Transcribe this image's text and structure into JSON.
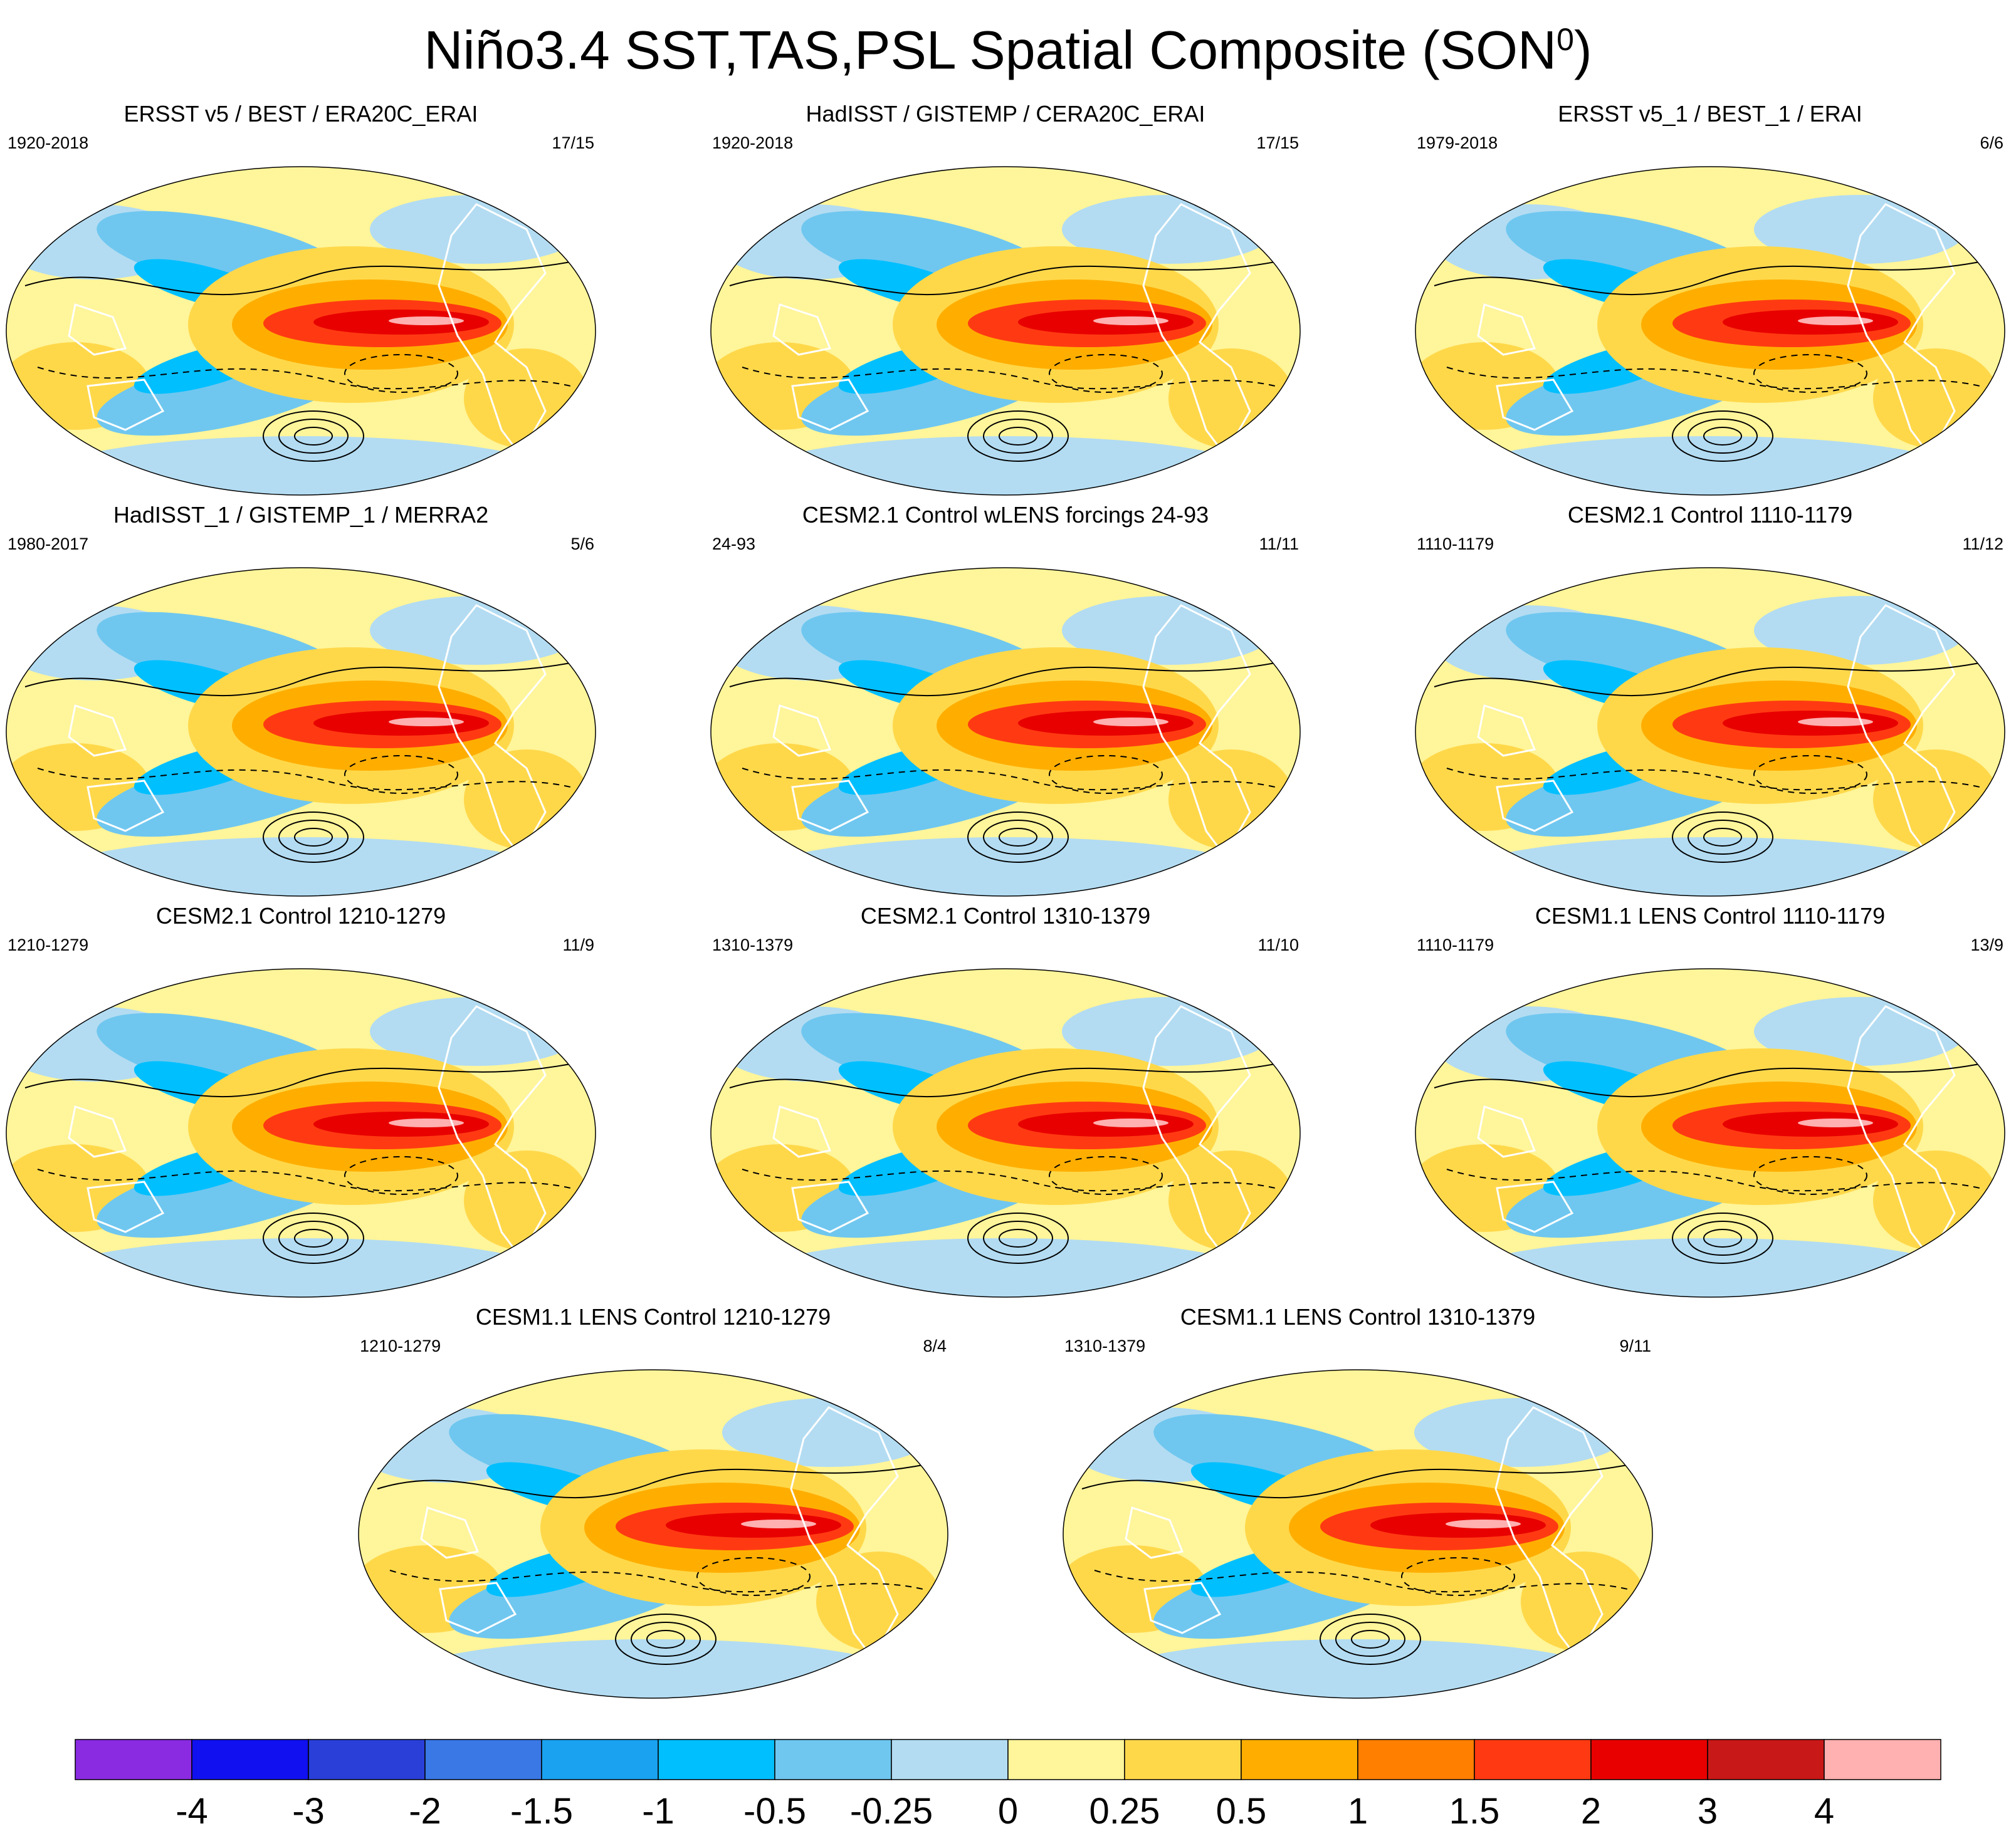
{
  "figure": {
    "title_main": "Niño3.4 SST,TAS,PSL Spatial Composite (SON",
    "title_sup": "0",
    "title_end": ")"
  },
  "panels": [
    {
      "title": "ERSST v5 / BEST / ERA20C_ERAI",
      "period": "1920-2018",
      "count": "17/15"
    },
    {
      "title": "HadISST / GISTEMP / CERA20C_ERAI",
      "period": "1920-2018",
      "count": "17/15"
    },
    {
      "title": "ERSST v5_1 / BEST_1 / ERAI",
      "period": "1979-2018",
      "count": "6/6"
    },
    {
      "title": "HadISST_1 / GISTEMP_1 / MERRA2",
      "period": "1980-2017",
      "count": "5/6"
    },
    {
      "title": "CESM2.1 Control wLENS forcings 24-93",
      "period": "24-93",
      "count": "11/11"
    },
    {
      "title": "CESM2.1 Control 1110-1179",
      "period": "1110-1179",
      "count": "11/12"
    },
    {
      "title": "CESM2.1 Control 1210-1279",
      "period": "1210-1279",
      "count": "11/9"
    },
    {
      "title": "CESM2.1 Control 1310-1379",
      "period": "1310-1379",
      "count": "11/10"
    },
    {
      "title": "CESM1.1 LENS Control 1110-1179",
      "period": "1110-1179",
      "count": "13/9"
    },
    {
      "title": "CESM1.1 LENS Control 1210-1279",
      "period": "1210-1279",
      "count": "8/4"
    },
    {
      "title": "CESM1.1 LENS Control 1310-1379",
      "period": "1310-1379",
      "count": "9/11"
    }
  ],
  "colorbar": {
    "colors": [
      "#8a2be2",
      "#1010f0",
      "#2a3fd8",
      "#3a78e6",
      "#1aa2f0",
      "#00bfff",
      "#6fc7ef",
      "#b3dcf2",
      "#fff59a",
      "#ffd84a",
      "#ffae00",
      "#ff7f00",
      "#ff3a12",
      "#e80000",
      "#c81818",
      "#ffb0b0"
    ],
    "labels": [
      "-4",
      "-3",
      "-2",
      "-1.5",
      "-1",
      "-0.5",
      "-0.25",
      "0",
      "0.25",
      "0.5",
      "1",
      "1.5",
      "2",
      "3",
      "4"
    ]
  }
}
